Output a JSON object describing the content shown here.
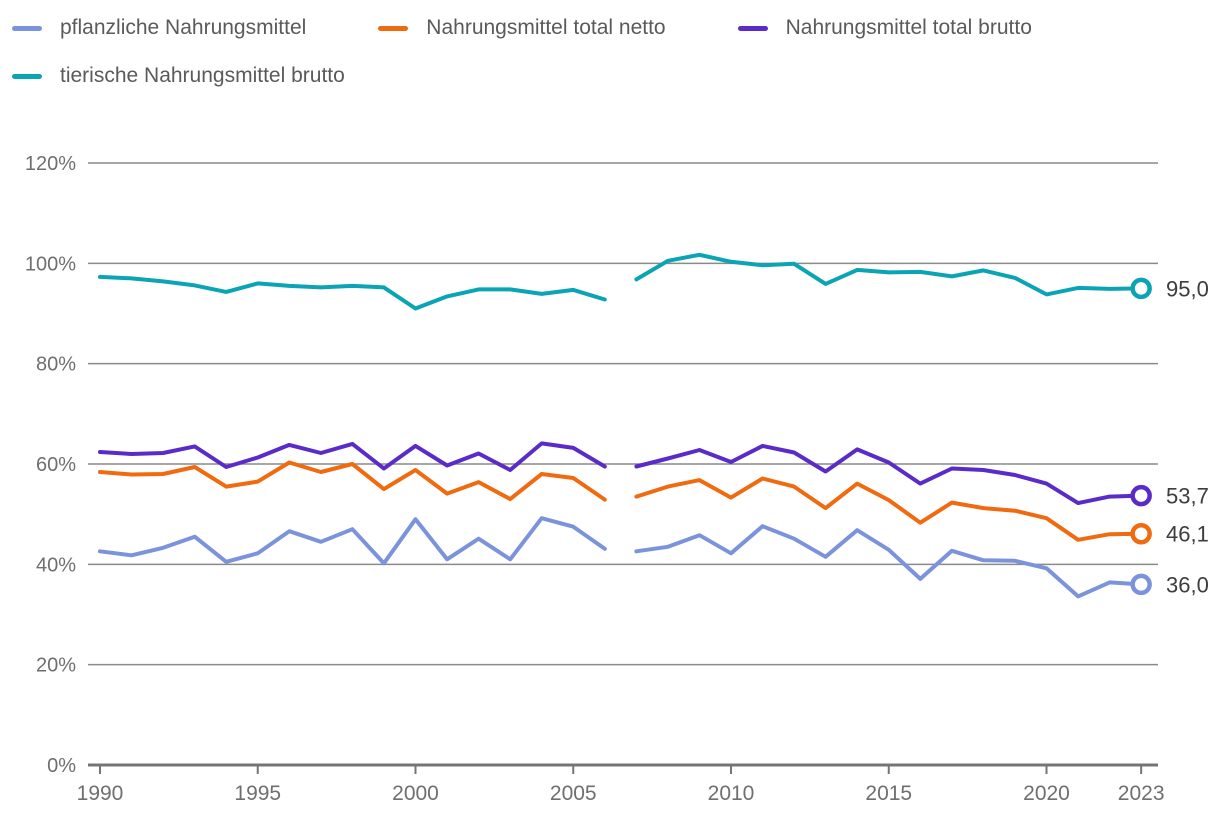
{
  "colors": {
    "background": "#ffffff",
    "grid": "#8a8a8a",
    "axis": "#757575",
    "tick_label": "#6f6f6f",
    "value_label": "#3d3d3d",
    "legend_text": "#5a5a5a"
  },
  "chart_data": {
    "type": "line",
    "title": "",
    "xlabel": "",
    "ylabel": "",
    "ylim": [
      0,
      120
    ],
    "xlim": [
      1990,
      2023
    ],
    "grid": true,
    "legend_position": "top",
    "gap_after_year": 2006,
    "x": [
      1990,
      1991,
      1992,
      1993,
      1994,
      1995,
      1996,
      1997,
      1998,
      1999,
      2000,
      2001,
      2002,
      2003,
      2004,
      2005,
      2006,
      2007,
      2008,
      2009,
      2010,
      2011,
      2012,
      2013,
      2014,
      2015,
      2016,
      2017,
      2018,
      2019,
      2020,
      2021,
      2022,
      2023
    ],
    "x_ticks": [
      1990,
      1995,
      2000,
      2005,
      2010,
      2015,
      2020,
      2023
    ],
    "y_ticks": [
      {
        "value": 120,
        "label": "120%"
      },
      {
        "value": 100,
        "label": "100%"
      },
      {
        "value": 80,
        "label": "80%"
      },
      {
        "value": 60,
        "label": "60%"
      },
      {
        "value": 40,
        "label": "40%"
      },
      {
        "value": 20,
        "label": "20%"
      },
      {
        "value": 0,
        "label": "0%"
      }
    ],
    "series": [
      {
        "name": "pflanzliche Nahrungsmittel",
        "color": "#7b93db",
        "end_label": "36,0",
        "values": [
          42.6,
          41.8,
          43.3,
          45.5,
          40.5,
          42.2,
          46.6,
          44.5,
          47.0,
          40.2,
          49.0,
          41.0,
          45.1,
          41.0,
          49.2,
          47.5,
          43.1,
          42.6,
          43.5,
          45.8,
          42.2,
          47.6,
          45.1,
          41.5,
          46.8,
          42.9,
          37.1,
          42.7,
          40.8,
          40.7,
          39.2,
          33.6,
          36.4,
          36.0
        ]
      },
      {
        "name": "Nahrungsmittel total netto",
        "color": "#f06a10",
        "end_label": "46,1",
        "values": [
          58.4,
          57.9,
          58.0,
          59.4,
          55.5,
          56.5,
          60.3,
          58.4,
          60.0,
          55.0,
          58.8,
          54.1,
          56.4,
          53.0,
          58.0,
          57.2,
          52.9,
          53.5,
          55.5,
          56.8,
          53.3,
          57.1,
          55.5,
          51.2,
          56.1,
          52.8,
          48.3,
          52.3,
          51.2,
          50.7,
          49.2,
          44.9,
          46.0,
          46.1
        ]
      },
      {
        "name": "Nahrungsmittel total brutto",
        "color": "#5a2bc8",
        "end_label": "53,7",
        "values": [
          62.4,
          62.0,
          62.2,
          63.5,
          59.4,
          61.3,
          63.8,
          62.2,
          64.0,
          59.1,
          63.6,
          59.7,
          62.1,
          58.8,
          64.1,
          63.2,
          59.5,
          59.5,
          61.1,
          62.8,
          60.4,
          63.6,
          62.3,
          58.5,
          62.9,
          60.3,
          56.1,
          59.1,
          58.8,
          57.8,
          56.1,
          52.2,
          53.5,
          53.7
        ]
      },
      {
        "name": "tierische Nahrungsmittel brutto",
        "color": "#0aa4b5",
        "end_label": "95,0",
        "values": [
          97.3,
          97.0,
          96.4,
          95.6,
          94.3,
          96.0,
          95.5,
          95.2,
          95.5,
          95.2,
          91.0,
          93.4,
          94.8,
          94.8,
          93.9,
          94.7,
          92.8,
          96.8,
          100.5,
          101.7,
          100.3,
          99.6,
          99.9,
          95.9,
          98.7,
          98.2,
          98.3,
          97.4,
          98.6,
          97.1,
          93.8,
          95.1,
          94.9,
          95.0
        ]
      }
    ]
  }
}
